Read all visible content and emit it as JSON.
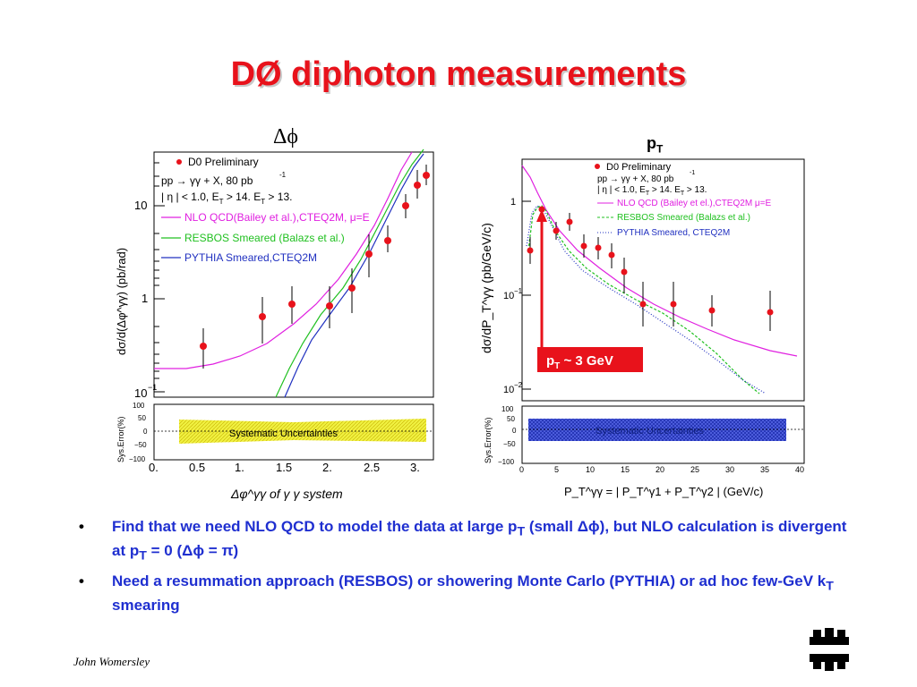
{
  "slide": {
    "title": "DØ diphoton measurements",
    "author": "John Womersley",
    "logo_icon": "fermilab-logo-icon"
  },
  "left_panel": {
    "label": "Δϕ",
    "legend": {
      "experiment": "D0 Preliminary",
      "process": "pp → γγ + X,  80 pb",
      "process_sup": "-1",
      "cuts": "| η | < 1.0,  E",
      "cuts_tail": " > 14. E",
      "cuts_end": " > 13.",
      "nlo": "NLO QCD(Bailey et al.),CTEQ2M, μ=E",
      "resbos": "RESBOS Smeared (Balazs et al.)",
      "pythia": "PYTHIA Smeared,CTEQ2M"
    },
    "ylabel": "dσ/d(Δφ^γγ)  (pb/rad)",
    "xlabel": "Δφ^γγ  of  γ γ system",
    "sys_ylabel": "Sys.Error(%)",
    "sys_label": "Systematic Uncertainties",
    "y_ticks": [
      "10",
      "1",
      "10"
    ],
    "y_tick_sup": "−1",
    "sys_ticks": [
      "100",
      "50",
      "0",
      "−50",
      "−100"
    ],
    "x_ticks": [
      "0.",
      "0.5",
      "1.",
      "1.5",
      "2.",
      "2.5",
      "3."
    ]
  },
  "right_panel": {
    "label": "p",
    "label_sub": "T",
    "legend": {
      "experiment": "D0 Preliminary",
      "process": "pp → γγ + X,  80 pb",
      "process_sup": "-1",
      "cuts": "| η | < 1.0,  E",
      "cuts_tail": " > 14. E",
      "cuts_end": " > 13.",
      "nlo": "NLO QCD (Bailey et el.),CTEQ2M μ=E",
      "resbos": "RESBOS Smeared (Balazs et al.)",
      "pythia": "PYTHIA Smeared, CTEQ2M"
    },
    "ylabel": "dσ/dP_T^γγ  (pb/GeV/c)",
    "xlabel": "P_T^γγ = | P_T^γ1 + P_T^γ2 |  (GeV/c)",
    "sys_ylabel": "Sys.Error(%)",
    "sys_label": "Systematic Uncertainties",
    "y_ticks": [
      "1",
      "10",
      "10"
    ],
    "y_tick_sups": [
      "−1",
      "−2"
    ],
    "sys_ticks": [
      "100",
      "50",
      "0",
      "−50",
      "−100"
    ],
    "x_ticks": [
      "0",
      "5",
      "10",
      "15",
      "20",
      "25",
      "30",
      "35",
      "40"
    ],
    "annotation": "p",
    "annotation_sub": "T",
    "annotation_tail": " ~ 3 GeV"
  },
  "bullets": [
    {
      "parts": [
        "Find that we need NLO QCD to model the data at large p",
        "T",
        " (small ",
        "Δϕ",
        "), but NLO calculation is divergent at  p",
        "T",
        " = 0 (",
        "Δϕ",
        " = ",
        "π",
        ")"
      ]
    },
    {
      "parts": [
        "Need a resummation approach (RESBOS) or showering Monte Carlo (PYTHIA) or ad hoc few-GeV k",
        "T",
        " smearing"
      ]
    }
  ],
  "colors": {
    "title": "#e8121b",
    "bullet_text": "#1f2fd0",
    "data_points": "#e8121b",
    "nlo_curve": "#e020e0",
    "resbos_curve": "#20c020",
    "pythia_curve": "#2030c0",
    "left_sys_band": "#f0f040",
    "right_sys_band": "#3040d0"
  }
}
